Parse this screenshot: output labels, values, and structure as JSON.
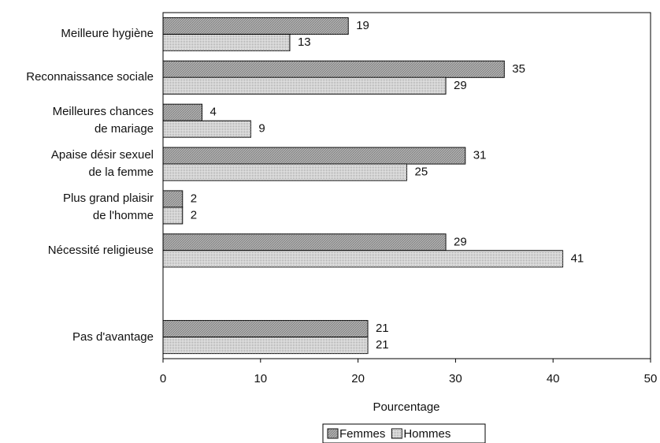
{
  "chart_data": {
    "type": "hbar",
    "categories": [
      "Meilleure hygiène",
      "Reconnaissance sociale",
      "Meilleures chances\nde mariage",
      "Apaise désir sexuel\nde la femme",
      "Plus grand plaisir\nde l'homme",
      "Nécessité religieuse",
      null,
      "Pas d'avantage"
    ],
    "series": [
      {
        "name": "Femmes",
        "color": "#b0b0b0",
        "values": [
          19,
          35,
          4,
          31,
          2,
          29,
          null,
          21
        ]
      },
      {
        "name": "Hommes",
        "color": "#e4e4e4",
        "values": [
          13,
          29,
          9,
          25,
          2,
          41,
          null,
          21
        ]
      }
    ],
    "xlabel": "Pourcentage",
    "xlim": [
      0,
      50
    ],
    "xticks": [
      0,
      10,
      20,
      30,
      40,
      50
    ],
    "legend": "bottom"
  }
}
